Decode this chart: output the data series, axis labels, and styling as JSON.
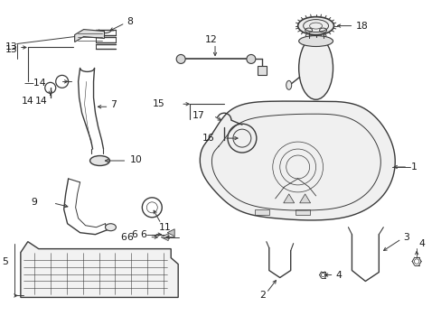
{
  "bg_color": "#ffffff",
  "line_color": "#3a3a3a",
  "fig_width": 4.89,
  "fig_height": 3.6,
  "dpi": 100,
  "label_fontsize": 7.8,
  "label_color": "#1a1a1a"
}
